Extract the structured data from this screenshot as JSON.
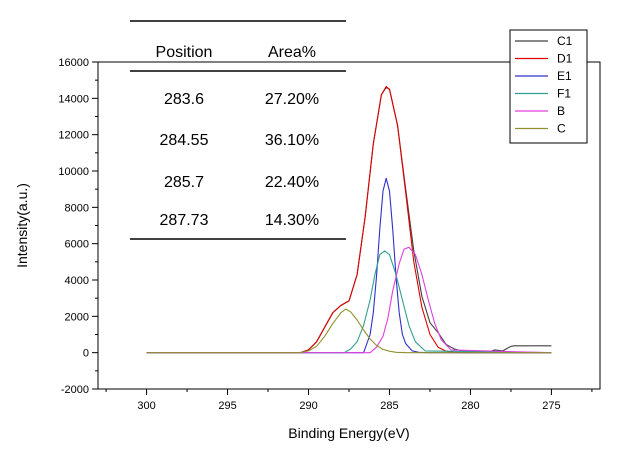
{
  "chart_data": {
    "type": "line",
    "xlabel": "Binding Energy(eV)",
    "ylabel": "Intensity(a.u.)",
    "x_reversed": true,
    "xlim": [
      303,
      272
    ],
    "ylim": [
      -2000,
      16000
    ],
    "x_ticks": [
      300,
      295,
      290,
      285,
      280,
      275
    ],
    "y_ticks": [
      -2000,
      0,
      2000,
      4000,
      6000,
      8000,
      10000,
      12000,
      14000,
      16000
    ],
    "grid": false,
    "legend_position": "top-right",
    "series": [
      {
        "name": "C1",
        "color": "#404040",
        "x": [
          300,
          290.5,
          290,
          289.5,
          289,
          288.5,
          288,
          287.5,
          287,
          286.5,
          286,
          285.5,
          285.2,
          285,
          284.5,
          284,
          283.5,
          283,
          282.5,
          282,
          281.5,
          281.2,
          281,
          280.5,
          280,
          279.5,
          279,
          278.5,
          278,
          277.5,
          277.3,
          277,
          276.5,
          276,
          275.5,
          275
        ],
        "y": [
          0,
          0,
          150,
          600,
          1400,
          2200,
          2600,
          2850,
          4300,
          7500,
          11500,
          14200,
          14600,
          14500,
          12500,
          9000,
          5600,
          3100,
          1650,
          1100,
          450,
          300,
          200,
          100,
          50,
          100,
          0,
          150,
          100,
          350,
          380,
          380,
          380,
          380,
          380,
          380
        ]
      },
      {
        "name": "D1",
        "color": "#e00000",
        "x": [
          300,
          290.5,
          290,
          289.5,
          289,
          288.5,
          288,
          287.5,
          287,
          286.5,
          286,
          285.5,
          285.2,
          285,
          284.5,
          284,
          283.5,
          283,
          282.5,
          282,
          281.5,
          281,
          280.5,
          280,
          275
        ],
        "y": [
          0,
          0,
          150,
          600,
          1400,
          2200,
          2600,
          2850,
          4300,
          7500,
          11500,
          14200,
          14650,
          14500,
          12500,
          8800,
          5000,
          2500,
          1000,
          300,
          80,
          20,
          0,
          0,
          0
        ]
      },
      {
        "name": "E1",
        "color": "#3030c8",
        "x": [
          300,
          286.6,
          286.2,
          286,
          285.8,
          285.6,
          285.4,
          285.2,
          285,
          284.8,
          284.6,
          284.4,
          284.2,
          284,
          283.6,
          283.2,
          282.6,
          275
        ],
        "y": [
          0,
          0,
          1000,
          2200,
          4200,
          6800,
          8900,
          9600,
          8900,
          6800,
          4200,
          2200,
          1000,
          500,
          100,
          20,
          0,
          0
        ]
      },
      {
        "name": "F1",
        "color": "#30a090",
        "x": [
          300,
          287.8,
          287.4,
          287,
          286.6,
          286.2,
          285.9,
          285.6,
          285.3,
          285,
          284.6,
          284.2,
          283.8,
          283.4,
          282.8,
          275
        ],
        "y": [
          0,
          0,
          200,
          600,
          1500,
          2900,
          4300,
          5400,
          5600,
          5400,
          4300,
          2900,
          1500,
          600,
          100,
          0
        ]
      },
      {
        "name": "B",
        "color": "#e040e0",
        "x": [
          300,
          286.2,
          285.8,
          285.4,
          285.1,
          284.8,
          284.4,
          284.1,
          283.8,
          283.4,
          283,
          282.6,
          282.2,
          281.8,
          281.2,
          275
        ],
        "y": [
          0,
          0,
          300,
          900,
          1900,
          3400,
          4900,
          5700,
          5800,
          5400,
          4300,
          2900,
          1600,
          700,
          150,
          0
        ]
      },
      {
        "name": "C",
        "color": "#909030",
        "x": [
          300,
          290.5,
          290,
          289.5,
          289,
          288.5,
          288,
          287.7,
          287.4,
          287,
          286.6,
          286.2,
          285.8,
          285.4,
          285,
          284.6,
          284,
          275
        ],
        "y": [
          0,
          0,
          100,
          350,
          900,
          1600,
          2200,
          2400,
          2250,
          1800,
          1250,
          750,
          400,
          180,
          80,
          20,
          0,
          0
        ]
      }
    ]
  },
  "table": {
    "headers": [
      "Position",
      "Area%"
    ],
    "rows": [
      [
        "283.6",
        "27.20%"
      ],
      [
        "284.55",
        "36.10%"
      ],
      [
        "285.7",
        "22.40%"
      ],
      [
        "287.73",
        "14.30%"
      ]
    ]
  }
}
